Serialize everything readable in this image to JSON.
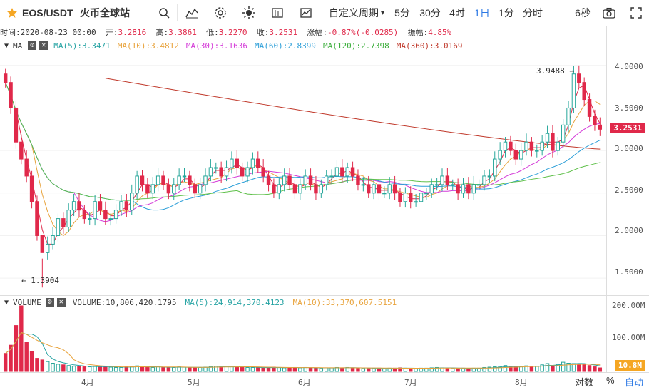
{
  "toolbar": {
    "symbol": "EOS/USDT",
    "exchange": "火币全球站",
    "period_dropdown": "自定义周期",
    "intervals": [
      "5分",
      "30分",
      "4时",
      "1日",
      "1分",
      "分时"
    ],
    "active_interval": "1日",
    "refresh": "6秒"
  },
  "info": {
    "time_label": "时间:",
    "time": "2020-08-23 00:00",
    "open_label": "开:",
    "open": "3.2816",
    "high_label": "高:",
    "high": "3.3861",
    "low_label": "低:",
    "low": "3.2270",
    "close_label": "收:",
    "close": "3.2531",
    "change_label": "涨幅:",
    "change": "-0.87%(-0.0285)",
    "amplitude_label": "振幅:",
    "amplitude": "4.85%"
  },
  "ma": {
    "label": "MA",
    "ma5": "MA(5):3.3471",
    "ma10": "MA(10):3.4812",
    "ma30": "MA(30):3.1636",
    "ma60": "MA(60):2.8399",
    "ma120": "MA(120):2.7398",
    "ma360": "MA(360):3.0169"
  },
  "volume": {
    "label": "VOLUME",
    "value": "VOLUME:10,806,420.1795",
    "ma5": "MA(5):24,914,370.4123",
    "ma10": "MA(10):33,370,607.5151",
    "current_tag": "10.8M",
    "axis": [
      "200.00M",
      "100.00M"
    ]
  },
  "price_axis": [
    "4.0000",
    "3.5000",
    "3.0000",
    "2.5000",
    "2.0000",
    "1.5000"
  ],
  "current_price": "3.2531",
  "annotations": {
    "high": "3.9488",
    "low": "1.3904"
  },
  "bottom_axis": [
    "4月",
    "5月",
    "6月",
    "7月",
    "8月"
  ],
  "bottom_right": {
    "log": "对数",
    "pct": "%",
    "auto": "自动"
  },
  "colors": {
    "up": "#26a69a",
    "down": "#e0294a",
    "ma5": "#e0294a",
    "ma10": "#e8a33c",
    "ma30": "#d43ad8",
    "ma60": "#2b9ed8",
    "ma120": "#5fc04a",
    "ma360": "#c0392b"
  },
  "chart_data": {
    "type": "candlestick",
    "title": "EOS/USDT",
    "ylim": [
      1.3,
      4.3
    ],
    "highlights": {
      "max": 3.9488,
      "min": 1.3904
    },
    "ma_last": {
      "MA5": 3.3471,
      "MA10": 3.4812,
      "MA30": 3.1636,
      "MA60": 2.8399,
      "MA120": 2.7398,
      "MA360": 3.0169
    },
    "closes": [
      3.8,
      3.5,
      3.1,
      2.9,
      2.7,
      2.4,
      2.0,
      1.8,
      1.9,
      2.0,
      2.2,
      2.1,
      2.3,
      2.4,
      2.3,
      2.2,
      2.2,
      2.4,
      2.3,
      2.2,
      2.2,
      2.3,
      2.4,
      2.3,
      2.5,
      2.7,
      2.6,
      2.5,
      2.6,
      2.7,
      2.6,
      2.5,
      2.6,
      2.7,
      2.7,
      2.6,
      2.5,
      2.6,
      2.7,
      2.8,
      2.8,
      2.7,
      2.8,
      2.9,
      2.8,
      2.7,
      2.8,
      2.9,
      2.8,
      2.7,
      2.6,
      2.5,
      2.6,
      2.7,
      2.6,
      2.5,
      2.6,
      2.7,
      2.6,
      2.5,
      2.6,
      2.7,
      2.7,
      2.8,
      2.7,
      2.8,
      2.7,
      2.6,
      2.6,
      2.5,
      2.6,
      2.5,
      2.5,
      2.6,
      2.5,
      2.4,
      2.5,
      2.4,
      2.4,
      2.5,
      2.5,
      2.6,
      2.6,
      2.7,
      2.6,
      2.6,
      2.5,
      2.6,
      2.5,
      2.6,
      2.6,
      2.7,
      2.7,
      2.9,
      3.0,
      3.1,
      3.0,
      2.9,
      3.0,
      3.1,
      3.0,
      3.0,
      3.1,
      3.2,
      3.0,
      3.1,
      3.3,
      3.5,
      3.9,
      3.8,
      3.6,
      3.4,
      3.3,
      3.25
    ],
    "volume_series": [
      55,
      80,
      140,
      200,
      90,
      60,
      40,
      35,
      30,
      25,
      22,
      20,
      18,
      16,
      15,
      14,
      14,
      16,
      15,
      14,
      13,
      12,
      12,
      14,
      15,
      17,
      14,
      13,
      12,
      14,
      13,
      12,
      12,
      14,
      13,
      12,
      11,
      12,
      13,
      15,
      16,
      14,
      15,
      16,
      14,
      13,
      12,
      12,
      11,
      11,
      12,
      13,
      12,
      11,
      12,
      12,
      11,
      12,
      11,
      10,
      10,
      11,
      11,
      12,
      11,
      12,
      11,
      10,
      10,
      9,
      10,
      10,
      9,
      10,
      10,
      11,
      10,
      9,
      9,
      10,
      10,
      11,
      12,
      11,
      10,
      10,
      9,
      10,
      9,
      10,
      10,
      12,
      13,
      14,
      15,
      18,
      16,
      14,
      15,
      17,
      16,
      15,
      20,
      24,
      18,
      22,
      28,
      25,
      24,
      22,
      20,
      18,
      14,
      10.8
    ]
  }
}
